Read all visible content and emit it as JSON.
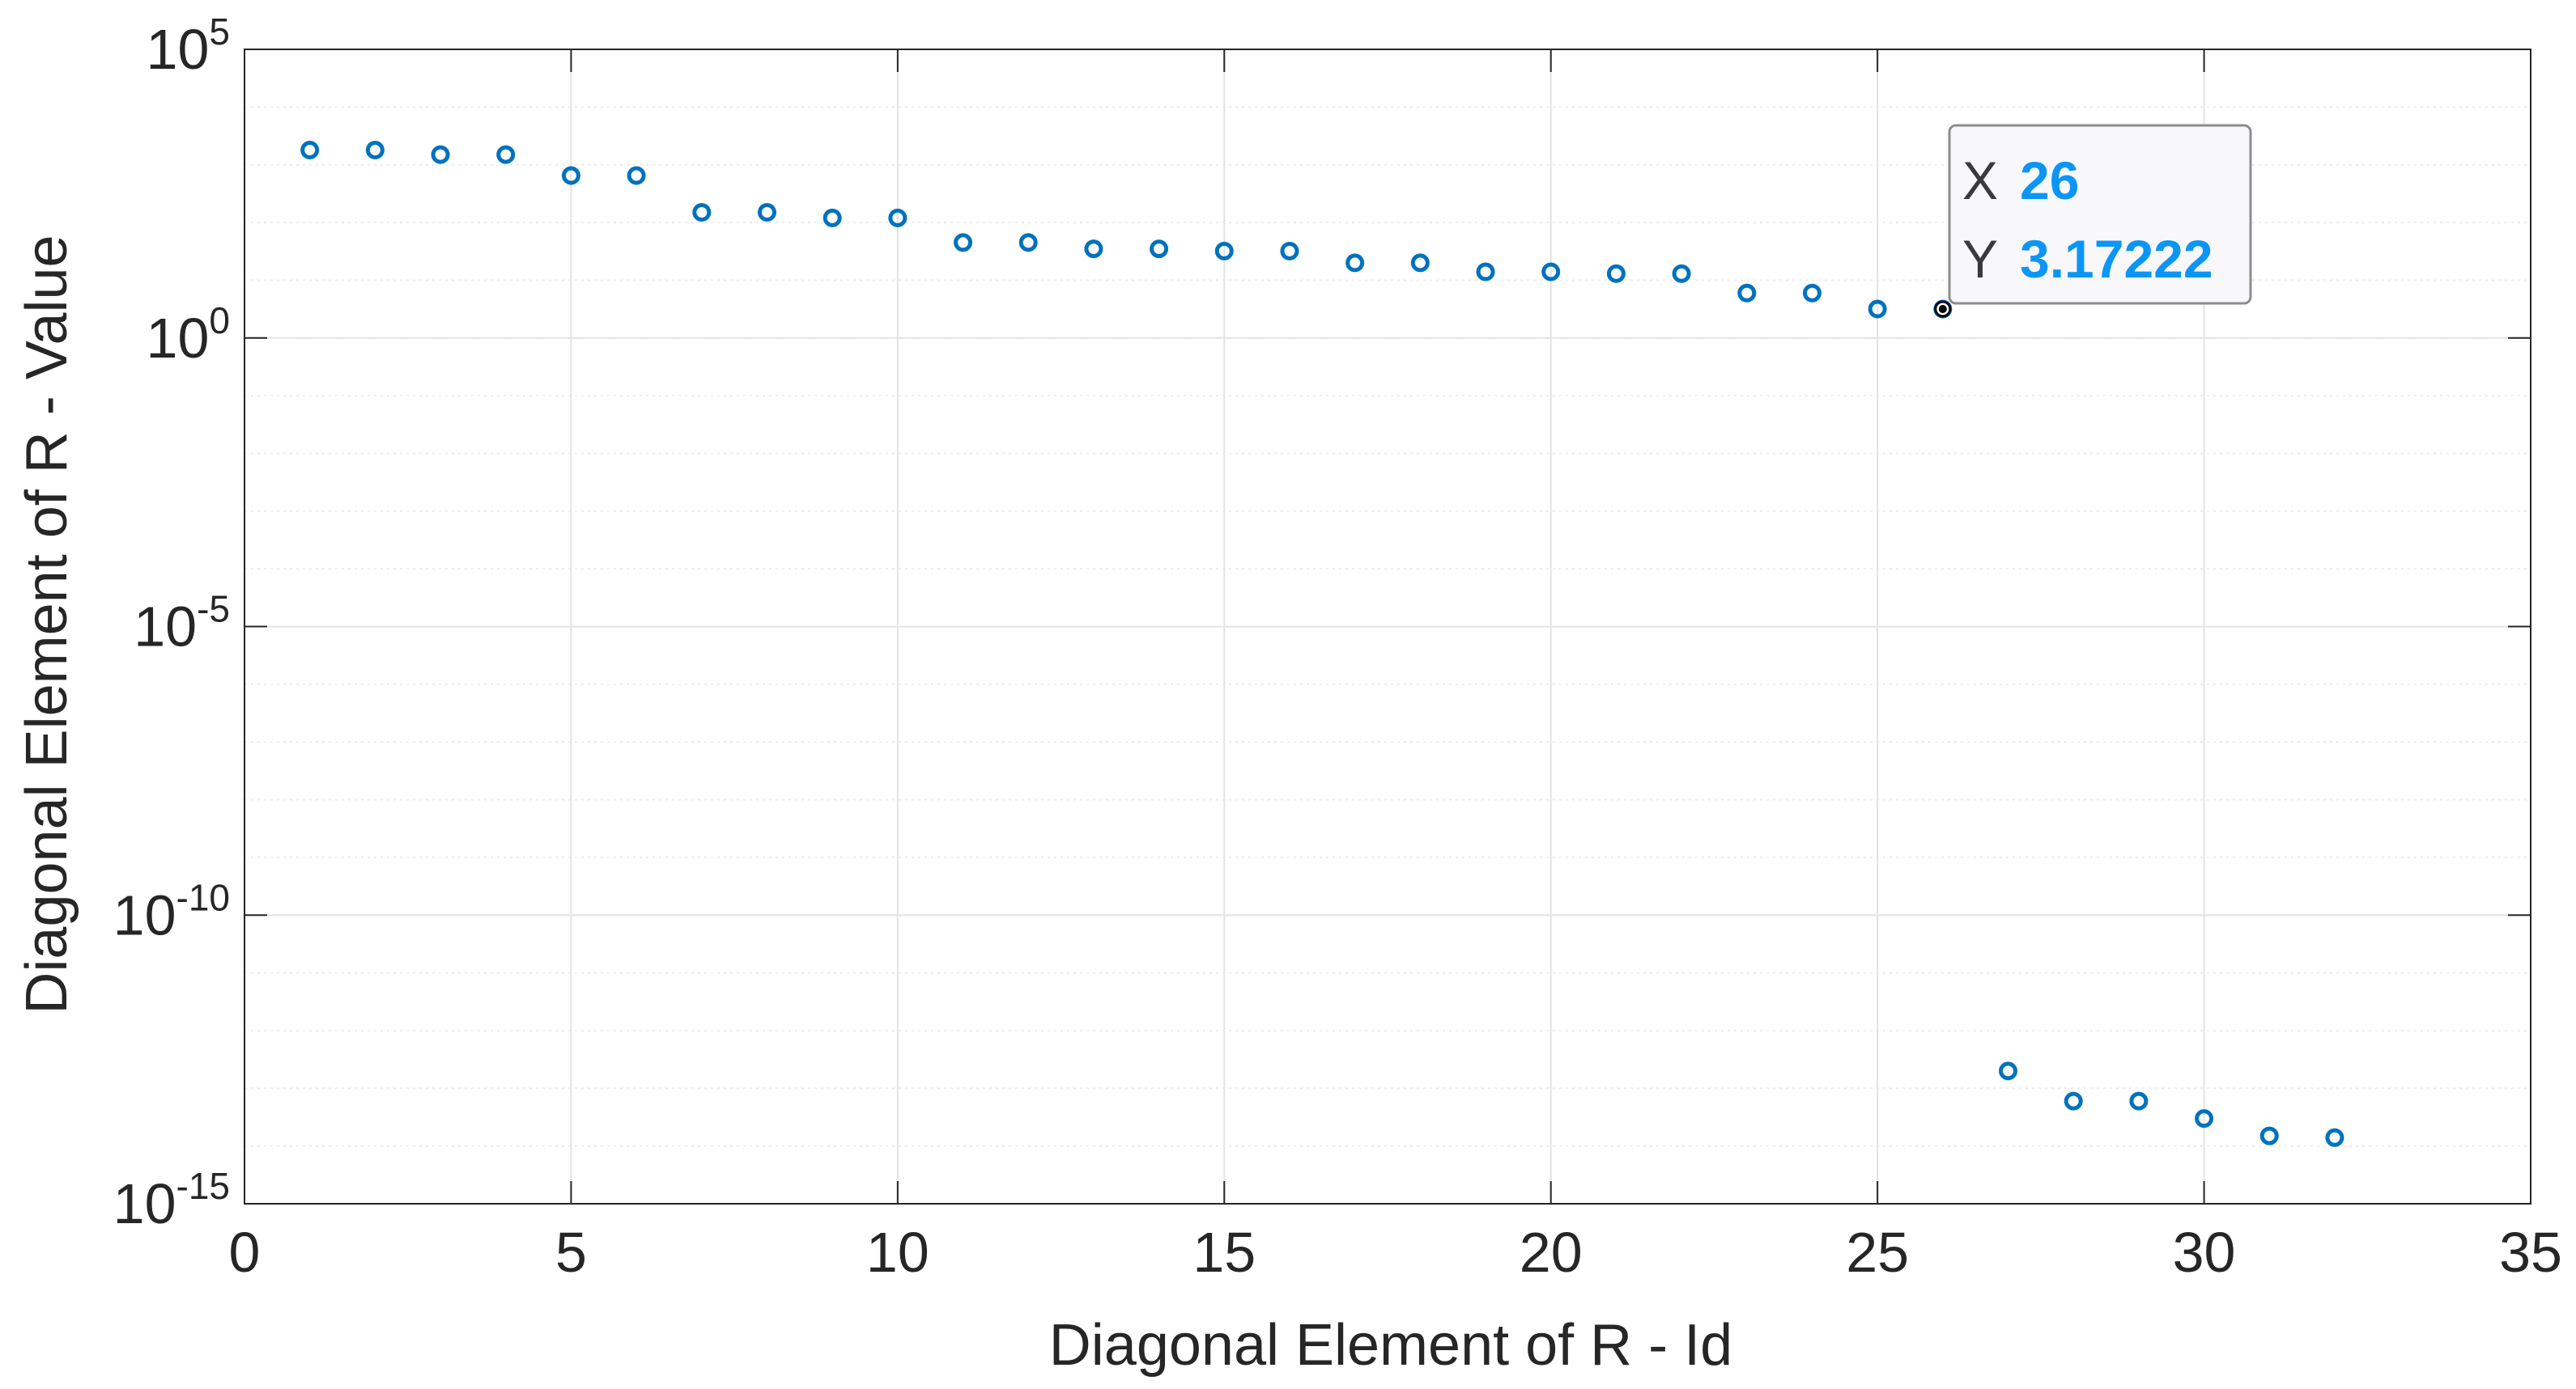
{
  "chart_data": {
    "type": "scatter",
    "title": "",
    "xlabel": "Diagonal Element of R - Id",
    "ylabel": "Diagonal Element of R - Value",
    "xlim": [
      0,
      35
    ],
    "ylim": [
      1e-15,
      100000.0
    ],
    "yscale": "log",
    "grid": true,
    "x_ticks": [
      "0",
      "5",
      "10",
      "15",
      "20",
      "25",
      "30",
      "35"
    ],
    "y_ticks": [
      {
        "base": "10",
        "exp": "-15",
        "value": -15
      },
      {
        "base": "10",
        "exp": "-10",
        "value": -10
      },
      {
        "base": "10",
        "exp": "-5",
        "value": -5
      },
      {
        "base": "10",
        "exp": "0",
        "value": 0
      },
      {
        "base": "10",
        "exp": "5",
        "value": 5
      }
    ],
    "marker_color": "#0072BD",
    "series": [
      {
        "x": [
          1,
          2,
          3,
          4,
          5,
          6,
          7,
          8,
          9,
          10,
          11,
          12,
          13,
          14,
          15,
          16,
          17,
          18,
          19,
          20,
          21,
          22,
          23,
          24,
          25,
          26,
          27,
          28,
          29,
          30,
          31,
          32
        ],
        "y": [
          1800.0,
          1800.0,
          1500.0,
          1500.0,
          650.0,
          650.0,
          150.0,
          150.0,
          120.0,
          120.0,
          45.0,
          45.0,
          35.0,
          35.0,
          32.0,
          32.0,
          20.0,
          20.0,
          14.0,
          14.0,
          13.0,
          13.0,
          6.0,
          6.0,
          3.17222,
          3.17222,
          2e-13,
          6e-14,
          6e-14,
          3e-14,
          1.5e-14,
          1.4e-14
        ]
      }
    ],
    "datatip": {
      "x_label": "X",
      "x_value": "26",
      "y_label": "Y",
      "y_value": "3.17222",
      "point_x": 26,
      "point_y": 3.17222,
      "value_color": "#0B96F5"
    }
  }
}
